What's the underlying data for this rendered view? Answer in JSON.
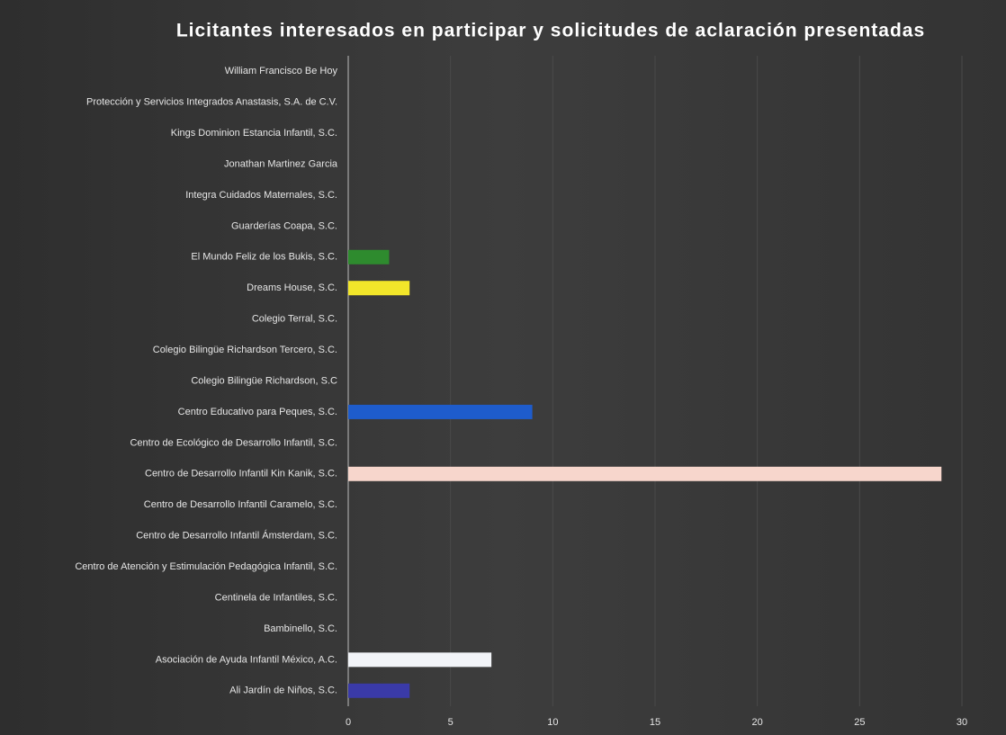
{
  "chart_data": {
    "type": "barh",
    "title": "Licitantes interesados en participar y solicitudes de aclaración presentadas",
    "categories": [
      "William Francisco Be Hoy",
      "Protección y Servicios Integrados Anastasis, S.A. de C.V.",
      "Kings Dominion Estancia Infantil, S.C.",
      "Jonathan Martinez Garcia",
      "Integra Cuidados Maternales, S.C.",
      "Guarderías Coapa, S.C.",
      "El Mundo Feliz de los Bukis, S.C.",
      "Dreams House, S.C.",
      "Colegio Terral, S.C.",
      "Colegio Bilingüe Richardson Tercero, S.C.",
      "Colegio Bilingüe Richardson, S.C",
      "Centro Educativo para Peques, S.C.",
      "Centro de Ecológico de Desarrollo Infantil, S.C.",
      "Centro de Desarrollo Infantil Kin Kanik, S.C.",
      "Centro de Desarrollo Infantil Caramelo, S.C.",
      "Centro de Desarrollo Infantil Ámsterdam, S.C.",
      "Centro de Atención y Estimulación Pedagógica Infantil, S.C.",
      "Centinela de Infantiles, S.C.",
      "Bambinello, S.C.",
      "Asociación de Ayuda Infantil México, A.C.",
      "Ali Jardín de Niños, S.C."
    ],
    "values": [
      0,
      0,
      0,
      0,
      0,
      0,
      2,
      3,
      0,
      0,
      0,
      9,
      0,
      29,
      0,
      0,
      0,
      0,
      0,
      7,
      3
    ],
    "colors": [
      null,
      null,
      null,
      null,
      null,
      null,
      "#2e8b2e",
      "#f2e62a",
      null,
      null,
      null,
      "#1e5ccc",
      null,
      "#f7d6cc",
      null,
      null,
      null,
      null,
      null,
      "#f2f4f8",
      "#3a3aa8"
    ],
    "xlim": [
      0,
      30
    ],
    "xticks": [
      0,
      5,
      10,
      15,
      20,
      25,
      30
    ],
    "grid": true
  }
}
